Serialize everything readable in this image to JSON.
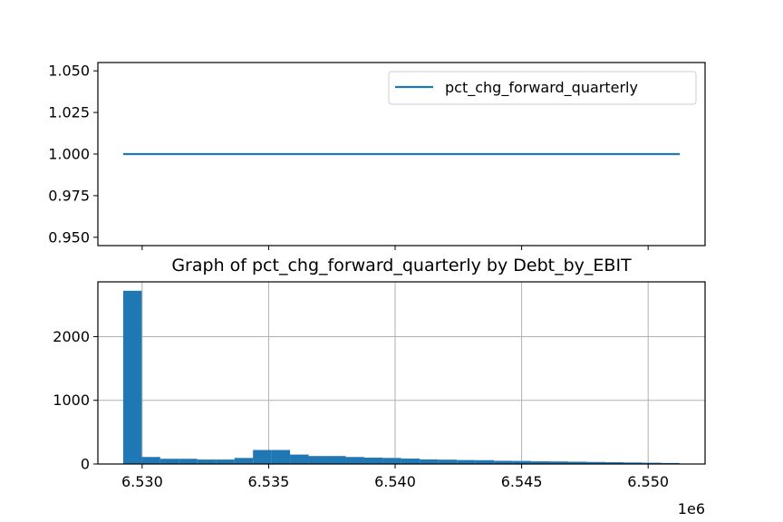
{
  "colors": {
    "series": "#1f77b4",
    "grid": "#b0b0b0",
    "axis": "#000000"
  },
  "chart_data": [
    {
      "type": "line",
      "x": [
        6.52925,
        6.55125
      ],
      "series": [
        {
          "name": "pct_chg_forward_quarterly",
          "y": [
            1.0,
            1.0
          ]
        }
      ],
      "xlim": [
        6.52825,
        6.55225
      ],
      "ylim": [
        0.945,
        1.055
      ],
      "y_ticks": [
        0.95,
        0.975,
        1.0,
        1.025,
        1.05
      ],
      "y_tick_labels": [
        "0.950",
        "0.975",
        "1.000",
        "1.025",
        "1.050"
      ],
      "x_ticks": [
        6.53,
        6.535,
        6.54,
        6.545,
        6.55
      ],
      "x_tick_labels_visible": false,
      "grid": false,
      "legend": {
        "position": "upper right",
        "entries": [
          "pct_chg_forward_quarterly"
        ]
      }
    },
    {
      "type": "bar",
      "title": "Graph of pct_chg_forward_quarterly by Debt_by_EBIT",
      "bin_start": 6.52925,
      "bin_width": 0.000733,
      "values": [
        2720,
        110,
        82,
        82,
        70,
        70,
        95,
        220,
        220,
        148,
        125,
        125,
        110,
        100,
        95,
        85,
        72,
        68,
        62,
        60,
        50,
        48,
        42,
        40,
        36,
        32,
        28,
        24,
        20,
        16
      ],
      "xlim": [
        6.52825,
        6.55225
      ],
      "ylim": [
        0,
        2860
      ],
      "x_ticks": [
        6.53,
        6.535,
        6.54,
        6.545,
        6.55
      ],
      "x_tick_labels": [
        "6.530",
        "6.535",
        "6.540",
        "6.545",
        "6.550"
      ],
      "y_ticks": [
        0,
        1000,
        2000
      ],
      "y_tick_labels": [
        "0",
        "1000",
        "2000"
      ],
      "offset_label": "1e6",
      "grid": true
    }
  ]
}
